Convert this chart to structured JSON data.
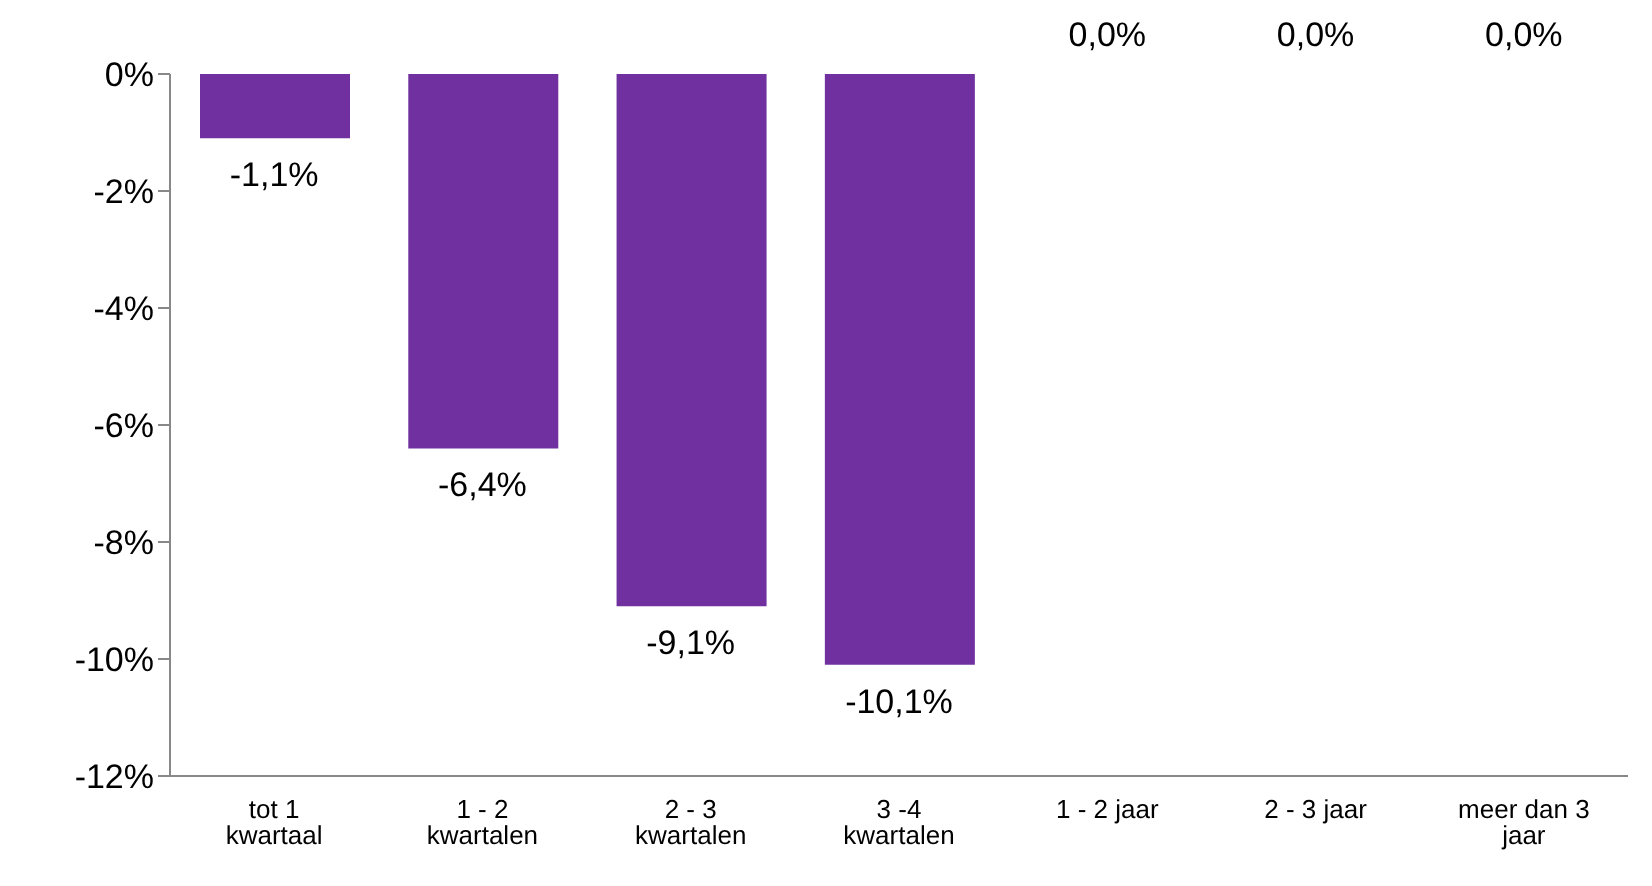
{
  "chart_data": {
    "type": "bar",
    "categories": [
      "tot 1 kwartaal",
      "1 - 2 kwartalen",
      "2 - 3 kwartalen",
      "3 -4 kwartalen",
      "1 - 2 jaar",
      "2 - 3 jaar",
      "meer dan 3 jaar"
    ],
    "values": [
      -1.1,
      -6.4,
      -9.1,
      -10.1,
      0,
      0,
      0
    ],
    "value_labels": [
      "-1,1%",
      "-6,4%",
      "-9,1%",
      "-10,1%",
      "0,0%",
      "0,0%",
      "0,0%"
    ],
    "color": "#7030a0",
    "ylim": [
      -12,
      0
    ],
    "yticks": [
      {
        "value": -12,
        "label": "-12%"
      },
      {
        "value": -10,
        "label": "-10%"
      },
      {
        "value": -8,
        "label": "-8%"
      },
      {
        "value": -6,
        "label": "-6%"
      },
      {
        "value": -4,
        "label": "-4%"
      },
      {
        "value": -2,
        "label": "-2%"
      },
      {
        "value": 0,
        "label": "0%"
      }
    ]
  }
}
